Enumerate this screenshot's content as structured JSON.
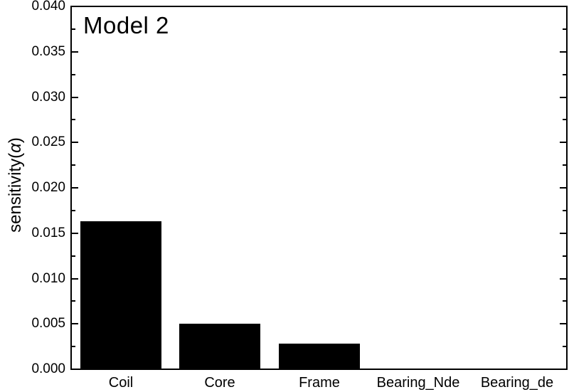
{
  "chart_data": {
    "type": "bar",
    "title": "Model 2",
    "categories": [
      "Coil",
      "Core",
      "Frame",
      "Bearing_Nde",
      "Bearing_de"
    ],
    "values": [
      0.0163,
      0.005,
      0.0028,
      0,
      0
    ],
    "xlabel": "",
    "ylabel": "sensitivity(α)",
    "ylabel_parts": [
      "sensitivity(",
      "α",
      ")"
    ],
    "ylim": [
      0,
      0.04
    ],
    "ytick_step": 0.005,
    "yminor_step": 0.0025,
    "ytick_labels": [
      "0.000",
      "0.005",
      "0.010",
      "0.015",
      "0.020",
      "0.025",
      "0.030",
      "0.035",
      "0.040"
    ],
    "grid": false,
    "legend": "none",
    "bar_color": "#000000",
    "axis_color": "#000000",
    "background_color": "#ffffff",
    "text_color": "#000000"
  }
}
